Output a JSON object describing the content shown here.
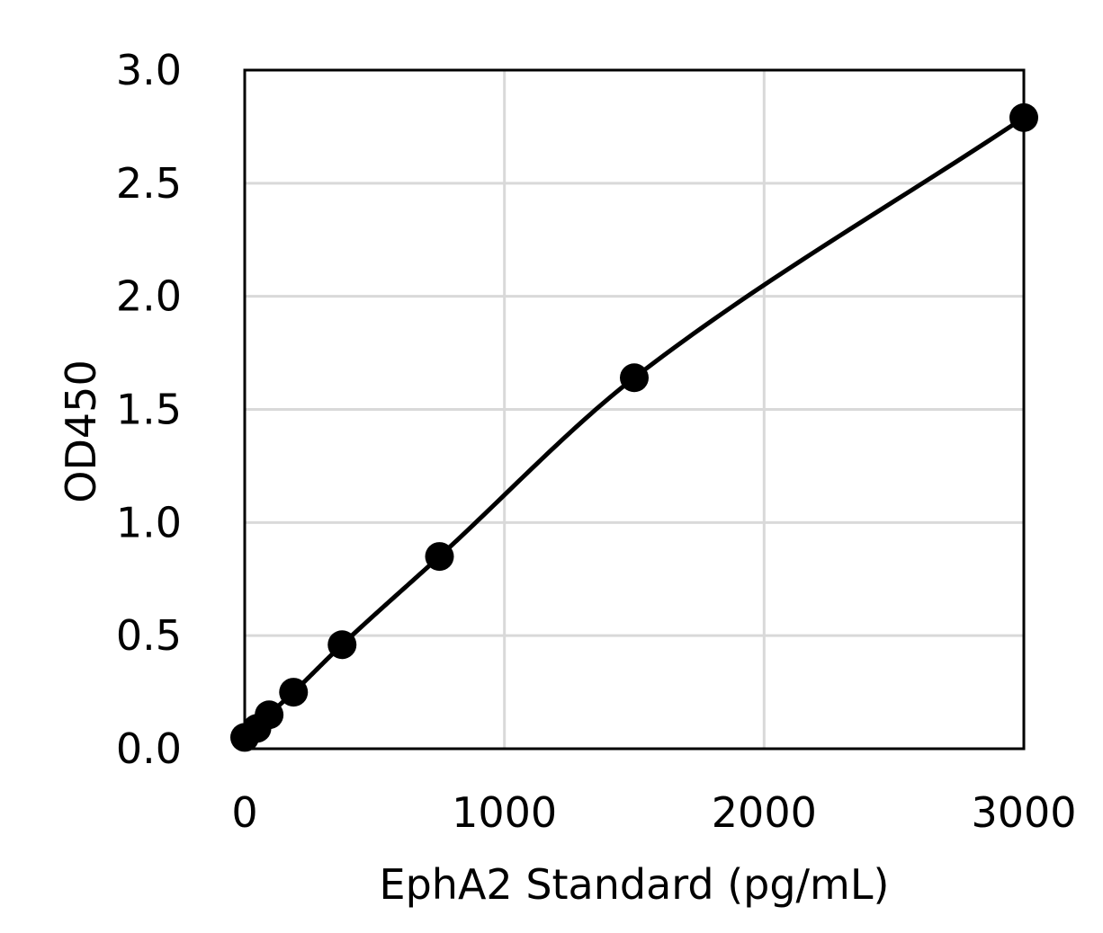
{
  "chart_data": {
    "type": "scatter",
    "title": "",
    "xlabel": "EphA2 Standard (pg/mL)",
    "ylabel": "OD450",
    "xlim": [
      0,
      3000
    ],
    "ylim": [
      0,
      3.0
    ],
    "x_ticks": [
      "0",
      "1000",
      "2000",
      "3000"
    ],
    "y_ticks": [
      "0.0",
      "0.5",
      "1.0",
      "1.5",
      "2.0",
      "2.5",
      "3.0"
    ],
    "grid": true,
    "legend": "none",
    "series": [
      {
        "values": [
          {
            "x": 0,
            "y": 0.05
          },
          {
            "x": 47,
            "y": 0.09
          },
          {
            "x": 94,
            "y": 0.15
          },
          {
            "x": 188,
            "y": 0.25
          },
          {
            "x": 375,
            "y": 0.46
          },
          {
            "x": 750,
            "y": 0.85
          },
          {
            "x": 1500,
            "y": 1.64
          },
          {
            "x": 3000,
            "y": 2.79
          }
        ],
        "color": "#000000",
        "line": "smooth-fit"
      }
    ],
    "colors": {
      "grid": "#d9d9d9",
      "axis": "#000000",
      "marker": "#000000",
      "background": "#ffffff"
    }
  }
}
